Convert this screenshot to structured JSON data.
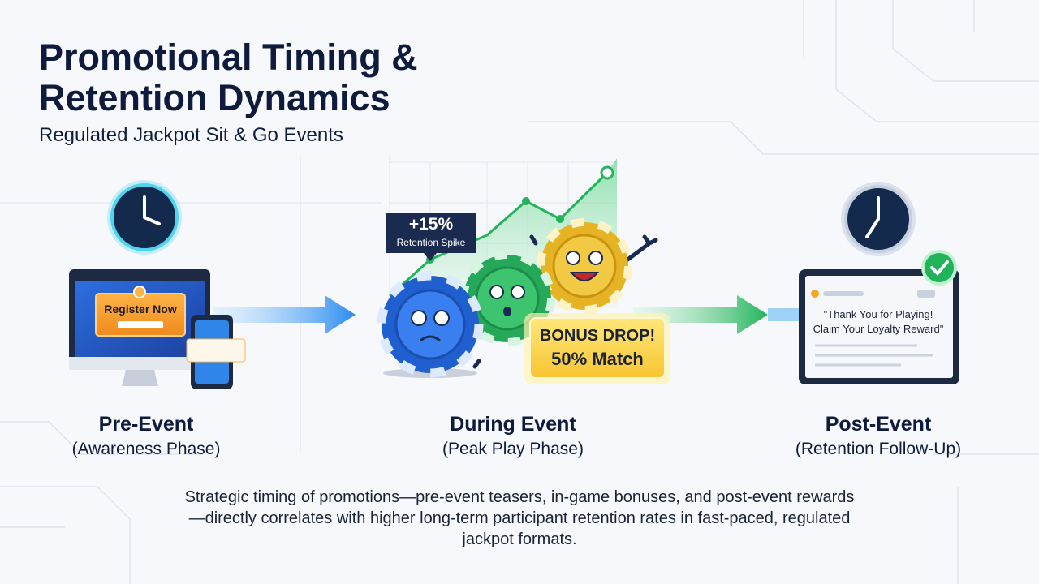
{
  "header": {
    "title_lines": [
      "Promotional Timing &",
      "Retention Dynamics"
    ],
    "subtitle": "Regulated Jackpot Sit & Go Events"
  },
  "pre_event": {
    "button": "Register Now",
    "label": "Pre-Event",
    "phase": "(Awareness Phase)"
  },
  "during_event": {
    "callout_value": "+15%",
    "callout_label": "Retention Spike",
    "bonus_lines": [
      "BONUS DROP!",
      "50% Match"
    ],
    "label": "During Event",
    "phase": "(Peak Play Phase)"
  },
  "post_event": {
    "message_lines": [
      "\"Thank You for Playing!",
      "Claim Your Loyalty Reward\""
    ],
    "label": "Post-Event",
    "phase": "(Retention Follow-Up)"
  },
  "footer": {
    "text": "Strategic timing of promotions—pre-event teasers, in-game bonuses, and post-event rewards—directly correlates with higher long-term participant retention rates in fast-paced, regulated jackpot formats."
  }
}
